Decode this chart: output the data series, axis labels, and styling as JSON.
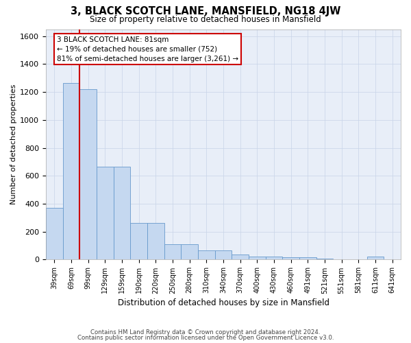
{
  "title": "3, BLACK SCOTCH LANE, MANSFIELD, NG18 4JW",
  "subtitle": "Size of property relative to detached houses in Mansfield",
  "xlabel": "Distribution of detached houses by size in Mansfield",
  "ylabel": "Number of detached properties",
  "footer_line1": "Contains HM Land Registry data © Crown copyright and database right 2024.",
  "footer_line2": "Contains public sector information licensed under the Open Government Licence v3.0.",
  "categories": [
    "39sqm",
    "69sqm",
    "99sqm",
    "129sqm",
    "159sqm",
    "190sqm",
    "220sqm",
    "250sqm",
    "280sqm",
    "310sqm",
    "340sqm",
    "370sqm",
    "400sqm",
    "430sqm",
    "460sqm",
    "491sqm",
    "521sqm",
    "551sqm",
    "581sqm",
    "611sqm",
    "641sqm"
  ],
  "values": [
    370,
    1265,
    1220,
    665,
    665,
    265,
    265,
    110,
    110,
    65,
    65,
    35,
    20,
    20,
    15,
    15,
    5,
    0,
    0,
    20,
    0
  ],
  "bar_color": "#c5d8f0",
  "bar_edge_color": "#6699cc",
  "grid_color": "#c8d4e8",
  "property_line_x": 1.5,
  "annotation_text": "3 BLACK SCOTCH LANE: 81sqm\n← 19% of detached houses are smaller (752)\n81% of semi-detached houses are larger (3,261) →",
  "annotation_box_color": "#ffffff",
  "annotation_box_edge": "#cc0000",
  "property_line_color": "#cc0000",
  "ylim": [
    0,
    1650
  ],
  "yticks": [
    0,
    200,
    400,
    600,
    800,
    1000,
    1200,
    1400,
    1600
  ],
  "background_color": "#ffffff",
  "plot_bg_color": "#e8eef8"
}
